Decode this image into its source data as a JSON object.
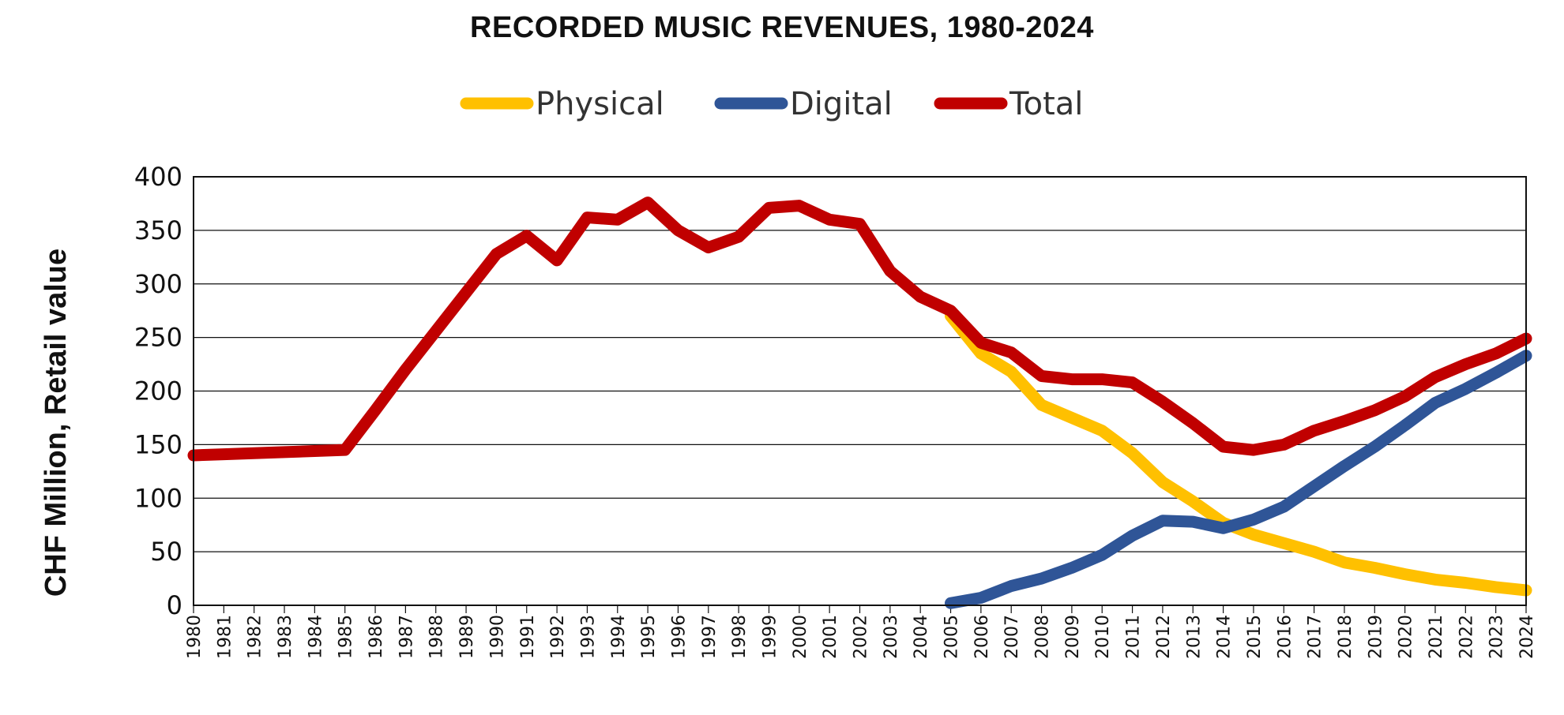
{
  "chart_data": {
    "type": "line",
    "title": "RECORDED MUSIC REVENUES, 1980-2024",
    "ylabel": "CHF Million, Retail value",
    "xlabel": "",
    "ylim": [
      0,
      400
    ],
    "yticks": [
      0,
      50,
      100,
      150,
      200,
      250,
      300,
      350,
      400
    ],
    "grid": true,
    "legend": "top-center",
    "categories": [
      "1980",
      "1981",
      "1982",
      "1983",
      "1984",
      "1985",
      "1986",
      "1987",
      "1988",
      "1989",
      "1990",
      "1991",
      "1992",
      "1993",
      "1994",
      "1995",
      "1996",
      "1997",
      "1998",
      "1999",
      "2000",
      "2001",
      "2002",
      "2003",
      "2004",
      "2005",
      "2006",
      "2007",
      "2008",
      "2009",
      "2010",
      "2011",
      "2012",
      "2013",
      "2014",
      "2015",
      "2016",
      "2017",
      "2018",
      "2019",
      "2020",
      "2021",
      "2022",
      "2023",
      "2024"
    ],
    "series": [
      {
        "name": "Physical",
        "color": "#FFC000",
        "values": [
          null,
          null,
          null,
          null,
          null,
          null,
          null,
          null,
          null,
          null,
          null,
          null,
          null,
          null,
          null,
          null,
          null,
          null,
          null,
          null,
          null,
          null,
          null,
          null,
          null,
          270,
          235,
          218,
          187,
          175,
          163,
          142,
          115,
          97,
          77,
          66,
          58,
          50,
          40,
          35,
          29,
          24,
          21,
          17,
          14
        ]
      },
      {
        "name": "Digital",
        "color": "#2F5597",
        "values": [
          null,
          null,
          null,
          null,
          null,
          null,
          null,
          null,
          null,
          null,
          null,
          null,
          null,
          null,
          null,
          null,
          null,
          null,
          null,
          null,
          null,
          null,
          null,
          null,
          null,
          2,
          7,
          18,
          25,
          35,
          47,
          65,
          79,
          78,
          72,
          80,
          92,
          111,
          130,
          148,
          168,
          189,
          202,
          217,
          233
        ]
      },
      {
        "name": "Total",
        "color": "#C00000",
        "values": [
          140,
          141,
          142,
          143,
          144,
          145,
          182,
          220,
          256,
          292,
          328,
          345,
          322,
          362,
          360,
          376,
          350,
          334,
          344,
          371,
          373,
          360,
          356,
          312,
          288,
          275,
          245,
          236,
          214,
          211,
          211,
          208,
          190,
          170,
          148,
          145,
          150,
          163,
          172,
          182,
          195,
          213,
          225,
          235,
          249
        ]
      }
    ]
  }
}
